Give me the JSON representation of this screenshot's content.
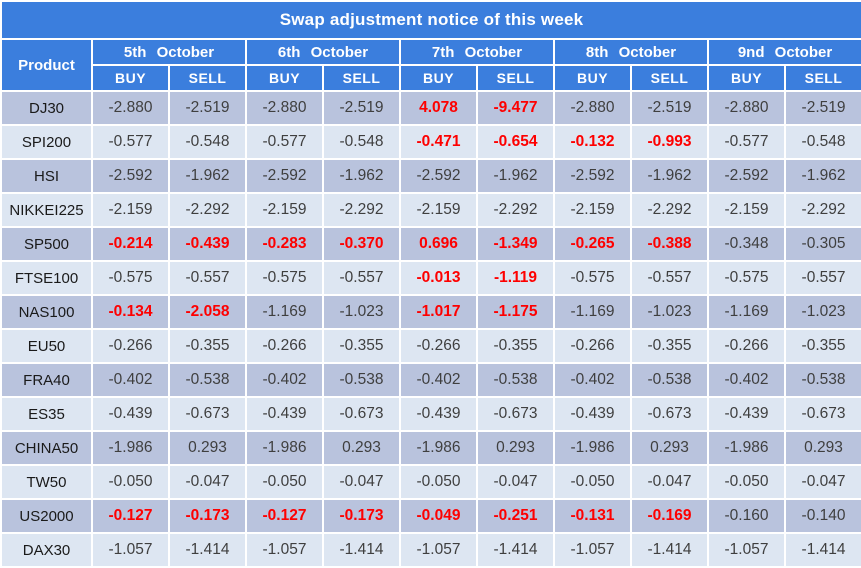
{
  "title": "Swap adjustment notice of this week",
  "colors": {
    "header_blue": "#3b7edd",
    "row_dark": "#b9c3dd",
    "row_light": "#dde6f2",
    "red_text": "#fe0000",
    "value_text": "#3f3f3f",
    "grid_white": "#ffffff"
  },
  "table": {
    "product_header": "Product",
    "buy_label": "BUY",
    "sell_label": "SELL",
    "dates": [
      "5th October",
      "6th October",
      "7th October",
      "8th October",
      "9nd October"
    ],
    "rows": [
      {
        "product": "DJ30",
        "values": [
          "-2.880",
          "-2.519",
          "-2.880",
          "-2.519",
          "4.078",
          "-9.477",
          "-2.880",
          "-2.519",
          "-2.880",
          "-2.519"
        ],
        "red": [
          4,
          5
        ]
      },
      {
        "product": "SPI200",
        "values": [
          "-0.577",
          "-0.548",
          "-0.577",
          "-0.548",
          "-0.471",
          "-0.654",
          "-0.132",
          "-0.993",
          "-0.577",
          "-0.548"
        ],
        "red": [
          4,
          5,
          6,
          7
        ]
      },
      {
        "product": "HSI",
        "values": [
          "-2.592",
          "-1.962",
          "-2.592",
          "-1.962",
          "-2.592",
          "-1.962",
          "-2.592",
          "-1.962",
          "-2.592",
          "-1.962"
        ],
        "red": []
      },
      {
        "product": "NIKKEI225",
        "values": [
          "-2.159",
          "-2.292",
          "-2.159",
          "-2.292",
          "-2.159",
          "-2.292",
          "-2.159",
          "-2.292",
          "-2.159",
          "-2.292"
        ],
        "red": []
      },
      {
        "product": "SP500",
        "values": [
          "-0.214",
          "-0.439",
          "-0.283",
          "-0.370",
          "0.696",
          "-1.349",
          "-0.265",
          "-0.388",
          "-0.348",
          "-0.305"
        ],
        "red": [
          0,
          1,
          2,
          3,
          4,
          5,
          6,
          7
        ]
      },
      {
        "product": "FTSE100",
        "values": [
          "-0.575",
          "-0.557",
          "-0.575",
          "-0.557",
          "-0.013",
          "-1.119",
          "-0.575",
          "-0.557",
          "-0.575",
          "-0.557"
        ],
        "red": [
          4,
          5
        ]
      },
      {
        "product": "NAS100",
        "values": [
          "-0.134",
          "-2.058",
          "-1.169",
          "-1.023",
          "-1.017",
          "-1.175",
          "-1.169",
          "-1.023",
          "-1.169",
          "-1.023"
        ],
        "red": [
          0,
          1,
          4,
          5
        ]
      },
      {
        "product": "EU50",
        "values": [
          "-0.266",
          "-0.355",
          "-0.266",
          "-0.355",
          "-0.266",
          "-0.355",
          "-0.266",
          "-0.355",
          "-0.266",
          "-0.355"
        ],
        "red": []
      },
      {
        "product": "FRA40",
        "values": [
          "-0.402",
          "-0.538",
          "-0.402",
          "-0.538",
          "-0.402",
          "-0.538",
          "-0.402",
          "-0.538",
          "-0.402",
          "-0.538"
        ],
        "red": []
      },
      {
        "product": "ES35",
        "values": [
          "-0.439",
          "-0.673",
          "-0.439",
          "-0.673",
          "-0.439",
          "-0.673",
          "-0.439",
          "-0.673",
          "-0.439",
          "-0.673"
        ],
        "red": []
      },
      {
        "product": "CHINA50",
        "values": [
          "-1.986",
          "0.293",
          "-1.986",
          "0.293",
          "-1.986",
          "0.293",
          "-1.986",
          "0.293",
          "-1.986",
          "0.293"
        ],
        "red": []
      },
      {
        "product": "TW50",
        "values": [
          "-0.050",
          "-0.047",
          "-0.050",
          "-0.047",
          "-0.050",
          "-0.047",
          "-0.050",
          "-0.047",
          "-0.050",
          "-0.047"
        ],
        "red": []
      },
      {
        "product": "US2000",
        "values": [
          "-0.127",
          "-0.173",
          "-0.127",
          "-0.173",
          "-0.049",
          "-0.251",
          "-0.131",
          "-0.169",
          "-0.160",
          "-0.140"
        ],
        "red": [
          0,
          1,
          2,
          3,
          4,
          5,
          6,
          7
        ]
      },
      {
        "product": "DAX30",
        "values": [
          "-1.057",
          "-1.414",
          "-1.057",
          "-1.414",
          "-1.057",
          "-1.414",
          "-1.057",
          "-1.414",
          "-1.057",
          "-1.414"
        ],
        "red": []
      }
    ]
  }
}
